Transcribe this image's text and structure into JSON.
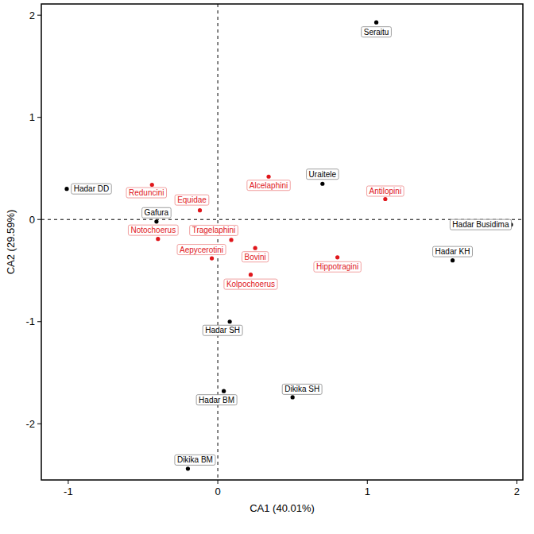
{
  "chart_data": {
    "type": "scatter",
    "x_label": "CA1 (40.01%)",
    "y_label": "CA2 (29.59%)",
    "xlim": [
      -1.18,
      2.04
    ],
    "ylim": [
      -2.55,
      2.11
    ],
    "xticks": [
      -1,
      0,
      1,
      2
    ],
    "yticks": [
      -2,
      -1,
      0,
      1,
      2
    ],
    "hlines": [
      0
    ],
    "vlines": [
      0
    ],
    "series": [
      {
        "color": "#000000",
        "marker": "circle",
        "labels": [
          "Seraitu",
          "Hadar DD",
          "Gafura",
          "Uraitele",
          "Hadar Busidima",
          "Hadar KH",
          "Hadar SH",
          "Hadar BM",
          "Dikika SH",
          "Dikika BM"
        ],
        "x": [
          1.06,
          -1.01,
          -0.41,
          0.7,
          1.96,
          1.57,
          0.08,
          0.04,
          0.5,
          -0.2
        ],
        "values": [
          1.93,
          0.3,
          -0.02,
          0.35,
          -0.05,
          -0.4,
          -1.0,
          -1.68,
          -1.74,
          -2.44
        ]
      },
      {
        "color": "#e0161b",
        "marker": "circle",
        "labels": [
          "Reduncini",
          "Equidae",
          "Alcelaphini",
          "Antilopini",
          "Notochoerus",
          "Tragelaphini",
          "Aepycerotini",
          "Bovini",
          "Hippotragini",
          "Kolpochoerus"
        ],
        "x": [
          -0.44,
          -0.12,
          0.34,
          1.12,
          -0.4,
          0.09,
          -0.04,
          0.25,
          0.8,
          0.22
        ],
        "values": [
          0.34,
          0.09,
          0.42,
          0.2,
          -0.19,
          -0.2,
          -0.38,
          -0.28,
          -0.37,
          -0.54
        ]
      }
    ]
  }
}
